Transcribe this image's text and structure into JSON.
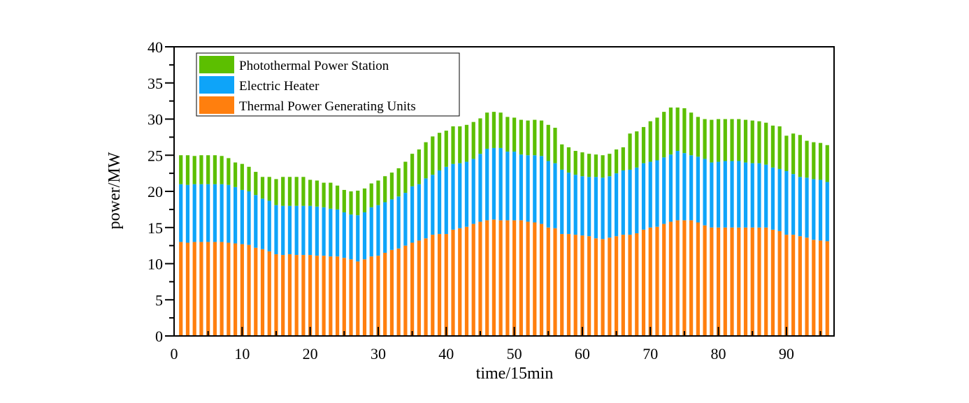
{
  "chart_data": {
    "type": "bar",
    "stacked": true,
    "xlabel": "time/15min",
    "ylabel": "power/MW",
    "xlim": [
      0,
      97
    ],
    "ylim": [
      0,
      40
    ],
    "x_ticks": [
      0,
      10,
      20,
      30,
      40,
      50,
      60,
      70,
      80,
      90
    ],
    "y_ticks": [
      0,
      5,
      10,
      15,
      20,
      25,
      30,
      35,
      40
    ],
    "grid": false,
    "legend_position": "top-left",
    "x": [
      1,
      2,
      3,
      4,
      5,
      6,
      7,
      8,
      9,
      10,
      11,
      12,
      13,
      14,
      15,
      16,
      17,
      18,
      19,
      20,
      21,
      22,
      23,
      24,
      25,
      26,
      27,
      28,
      29,
      30,
      31,
      32,
      33,
      34,
      35,
      36,
      37,
      38,
      39,
      40,
      41,
      42,
      43,
      44,
      45,
      46,
      47,
      48,
      49,
      50,
      51,
      52,
      53,
      54,
      55,
      56,
      57,
      58,
      59,
      60,
      61,
      62,
      63,
      64,
      65,
      66,
      67,
      68,
      69,
      70,
      71,
      72,
      73,
      74,
      75,
      76,
      77,
      78,
      79,
      80,
      81,
      82,
      83,
      84,
      85,
      86,
      87,
      88,
      89,
      90,
      91,
      92,
      93,
      94,
      95,
      96
    ],
    "series": [
      {
        "name": "Thermal Power Generating Units",
        "color": "#ff7f0e",
        "values": [
          13.0,
          12.9,
          13.0,
          13.0,
          13.0,
          13.0,
          13.0,
          12.9,
          12.8,
          12.7,
          12.6,
          12.2,
          12.0,
          11.7,
          11.3,
          11.2,
          11.3,
          11.2,
          11.2,
          11.2,
          11.1,
          11.1,
          11.0,
          11.0,
          10.8,
          10.6,
          10.3,
          10.6,
          11.0,
          11.1,
          11.5,
          11.9,
          12.1,
          12.5,
          12.9,
          13.2,
          13.5,
          14.0,
          14.1,
          14.1,
          14.7,
          14.9,
          15.1,
          15.5,
          15.8,
          16.0,
          16.1,
          16.0,
          16.0,
          16.0,
          16.0,
          15.8,
          15.7,
          15.5,
          15.0,
          14.9,
          14.1,
          14.1,
          14.0,
          13.9,
          13.8,
          13.5,
          13.4,
          13.6,
          13.8,
          14.0,
          14.0,
          14.2,
          14.7,
          15.0,
          15.1,
          15.5,
          15.8,
          16.0,
          16.0,
          16.0,
          15.7,
          15.3,
          15.0,
          15.0,
          15.0,
          15.0,
          15.0,
          15.0,
          15.0,
          15.0,
          15.0,
          14.7,
          14.5,
          14.0,
          14.0,
          13.8,
          13.6,
          13.3,
          13.2,
          13.1
        ]
      },
      {
        "name": "Electric Heater",
        "color": "#0ea4f9",
        "values": [
          8.0,
          8.0,
          8.0,
          8.0,
          8.0,
          8.0,
          8.0,
          8.0,
          7.8,
          7.5,
          7.4,
          7.3,
          7.0,
          7.0,
          6.8,
          6.8,
          6.7,
          6.8,
          6.8,
          6.8,
          6.8,
          6.7,
          6.6,
          6.5,
          6.3,
          6.2,
          6.4,
          6.5,
          6.8,
          7.0,
          7.0,
          7.0,
          7.2,
          7.3,
          7.8,
          7.8,
          8.3,
          8.3,
          8.8,
          9.3,
          9.1,
          9.0,
          9.0,
          9.0,
          9.4,
          9.9,
          9.9,
          10.0,
          9.5,
          9.5,
          9.1,
          9.2,
          9.3,
          9.4,
          9.2,
          9.0,
          8.9,
          8.5,
          8.3,
          8.2,
          8.2,
          8.5,
          8.5,
          8.5,
          8.7,
          8.9,
          9.0,
          9.1,
          9.2,
          9.1,
          9.2,
          9.2,
          9.3,
          9.6,
          9.3,
          9.0,
          9.1,
          9.2,
          9.0,
          9.1,
          9.2,
          9.2,
          9.2,
          9.0,
          8.9,
          8.9,
          8.7,
          8.6,
          8.6,
          8.8,
          8.4,
          8.2,
          8.3,
          8.4,
          8.4,
          8.2
        ]
      },
      {
        "name": "Photothermal Power Station",
        "color": "#5cbf00",
        "values": [
          4.0,
          4.1,
          3.9,
          4.0,
          4.0,
          4.0,
          3.9,
          3.7,
          3.4,
          3.6,
          3.4,
          3.2,
          3.0,
          3.3,
          3.6,
          4.0,
          4.0,
          4.0,
          4.0,
          3.6,
          3.6,
          3.4,
          3.6,
          3.3,
          3.1,
          3.2,
          3.4,
          3.3,
          3.3,
          3.4,
          3.6,
          3.7,
          3.9,
          4.3,
          4.5,
          4.8,
          5.0,
          5.3,
          5.2,
          5.0,
          5.2,
          5.1,
          5.1,
          5.1,
          4.9,
          5.0,
          5.0,
          4.9,
          4.8,
          4.7,
          4.8,
          4.8,
          4.9,
          4.9,
          5.0,
          4.9,
          3.5,
          3.5,
          3.3,
          3.3,
          3.2,
          3.1,
          3.1,
          3.1,
          3.3,
          3.2,
          5.0,
          5.0,
          5.0,
          5.6,
          5.9,
          6.3,
          6.5,
          6.0,
          6.2,
          5.9,
          5.5,
          5.5,
          5.9,
          5.9,
          5.8,
          5.8,
          5.8,
          5.9,
          5.9,
          5.8,
          5.8,
          5.8,
          5.9,
          4.9,
          5.6,
          5.8,
          5.1,
          5.1,
          5.1,
          5.1
        ]
      }
    ]
  }
}
